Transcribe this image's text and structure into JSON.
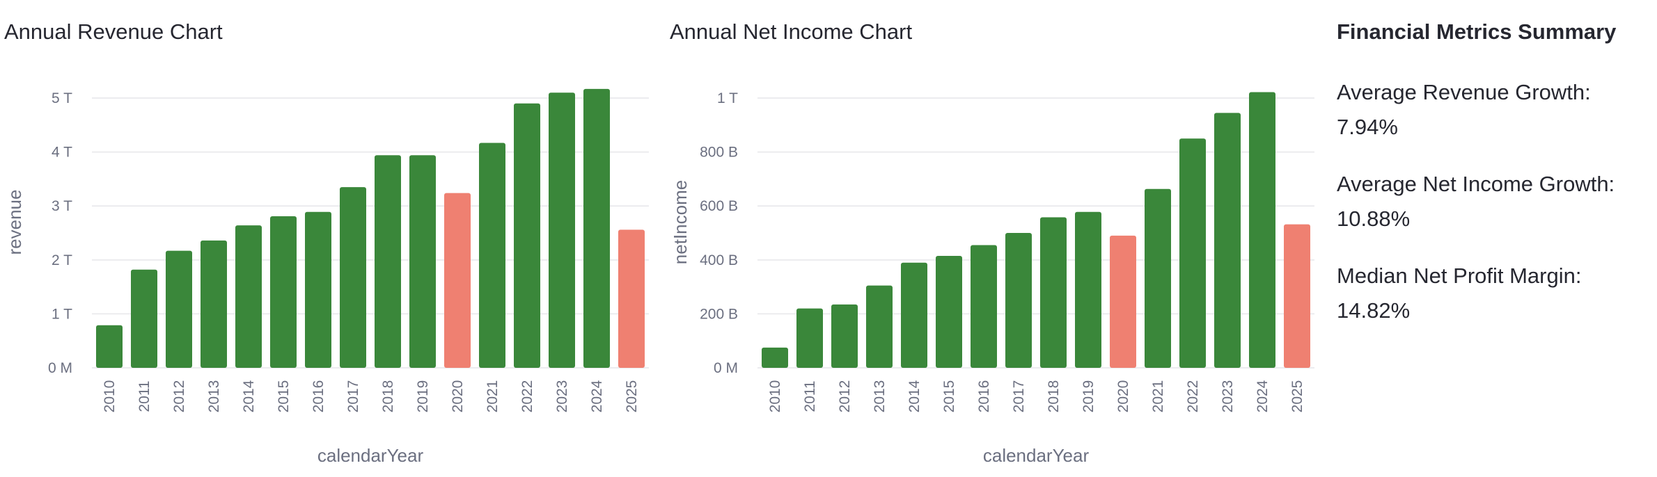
{
  "revenue_chart_title": "Annual Revenue Chart",
  "net_income_chart_title": "Annual Net Income Chart",
  "summary": {
    "title": "Financial Metrics Summary",
    "metrics": [
      "Average Revenue Growth: 7.94%",
      "Average Net Income Growth: 10.88%",
      "Median Net Profit Margin: 14.82%"
    ]
  },
  "colors": {
    "positive": "#3a873a",
    "negative": "#ef8071",
    "grid": "#e6e6ea"
  },
  "chart_data": [
    {
      "type": "bar",
      "title": "Annual Revenue Chart",
      "xlabel": "calendarYear",
      "ylabel": "revenue",
      "categories": [
        "2010",
        "2011",
        "2012",
        "2013",
        "2014",
        "2015",
        "2016",
        "2017",
        "2018",
        "2019",
        "2020",
        "2021",
        "2022",
        "2023",
        "2024",
        "2025"
      ],
      "values": [
        0.79,
        1.82,
        2.17,
        2.36,
        2.64,
        2.81,
        2.89,
        3.35,
        3.94,
        3.94,
        3.24,
        4.17,
        4.9,
        5.1,
        5.17,
        2.56
      ],
      "value_unit": "T",
      "declined": [
        false,
        false,
        false,
        false,
        false,
        false,
        false,
        false,
        false,
        false,
        true,
        false,
        false,
        false,
        false,
        true
      ],
      "ylim": [
        0,
        5.4
      ],
      "yticks": [
        0,
        1,
        2,
        3,
        4,
        5
      ],
      "ytick_labels": [
        "0 M",
        "1 T",
        "2 T",
        "3 T",
        "4 T",
        "5 T"
      ],
      "grid": true
    },
    {
      "type": "bar",
      "title": "Annual Net Income Chart",
      "xlabel": "calendarYear",
      "ylabel": "netIncome",
      "categories": [
        "2010",
        "2011",
        "2012",
        "2013",
        "2014",
        "2015",
        "2016",
        "2017",
        "2018",
        "2019",
        "2020",
        "2021",
        "2022",
        "2023",
        "2024",
        "2025"
      ],
      "values": [
        75,
        220,
        235,
        305,
        390,
        415,
        455,
        500,
        558,
        578,
        490,
        663,
        850,
        945,
        1022,
        532
      ],
      "value_unit": "B",
      "declined": [
        false,
        false,
        false,
        false,
        false,
        false,
        false,
        false,
        false,
        false,
        true,
        false,
        false,
        false,
        false,
        true
      ],
      "ylim": [
        0,
        1080
      ],
      "yticks": [
        0,
        200,
        400,
        600,
        800,
        1000
      ],
      "ytick_labels": [
        "0 M",
        "200 B",
        "400 B",
        "600 B",
        "800 B",
        "1 T"
      ],
      "grid": true
    }
  ]
}
